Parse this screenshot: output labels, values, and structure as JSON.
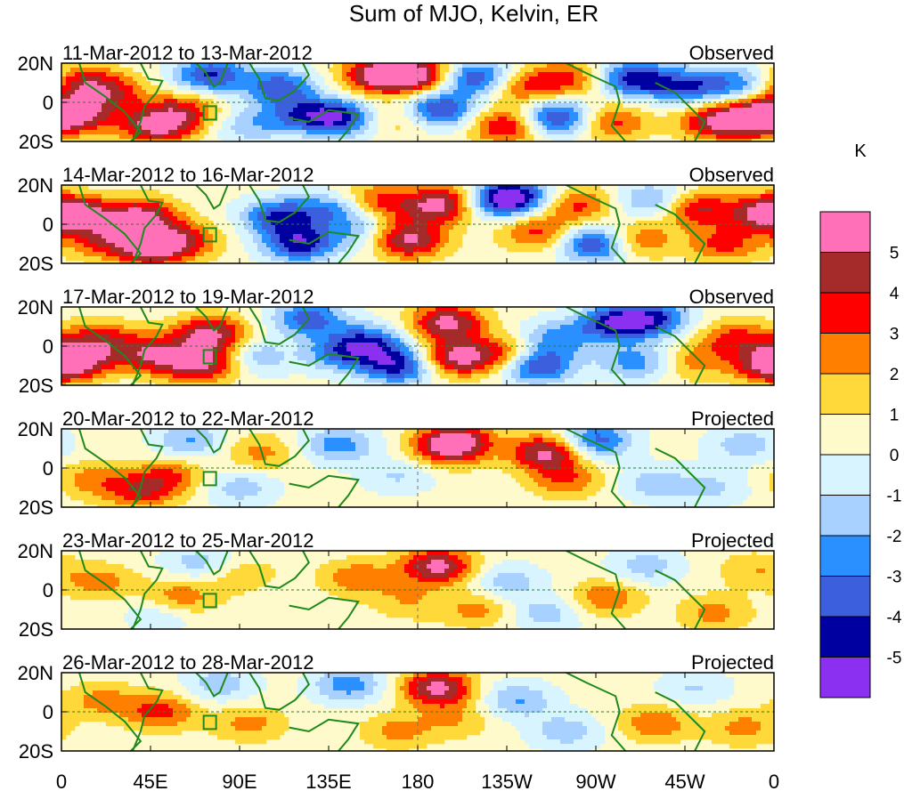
{
  "chart_data": {
    "type": "heatmap",
    "title": "Sum of MJO, Kelvin, ER",
    "x_tick_labels": [
      "0",
      "45E",
      "90E",
      "135E",
      "180",
      "135W",
      "90W",
      "45W",
      "0"
    ],
    "x_ticks_deg_east": [
      0,
      45,
      90,
      135,
      180,
      225,
      270,
      315,
      360
    ],
    "y_tick_labels": [
      "20N",
      "0",
      "20S"
    ],
    "y_ticks_lat": [
      20,
      0,
      -20
    ],
    "xlim": [
      0,
      360
    ],
    "ylim": [
      -20,
      20
    ],
    "colorbar": {
      "unit": "K",
      "tick_labels": [
        "5",
        "4",
        "3",
        "2",
        "1",
        "0",
        "-1",
        "-2",
        "-3",
        "-4",
        "-5"
      ],
      "colors": [
        "#ff70b8",
        "#a52a2a",
        "#ff0000",
        "#ff7f00",
        "#ffd83a",
        "#fffacc",
        "#d8f4ff",
        "#a9d1ff",
        "#2a8fff",
        "#3c5fdd",
        "#0000a0",
        "#8b2ff0"
      ]
    },
    "panels": [
      {
        "date_range": "11-Mar-2012 to 13-Mar-2012",
        "status": "Observed",
        "blobs": [
          [
            8,
            10,
            3.5
          ],
          [
            8,
            -6,
            4.5
          ],
          [
            25,
            5,
            3
          ],
          [
            48,
            -12,
            5
          ],
          [
            75,
            14,
            -4.5
          ],
          [
            62,
            -4,
            3
          ],
          [
            95,
            -12,
            -2
          ],
          [
            110,
            8,
            -4
          ],
          [
            120,
            -6,
            -3
          ],
          [
            140,
            -8,
            -5
          ],
          [
            160,
            14,
            5
          ],
          [
            180,
            14,
            5
          ],
          [
            172,
            -8,
            2
          ],
          [
            190,
            -4,
            -5
          ],
          [
            210,
            12,
            -5
          ],
          [
            225,
            -12,
            4
          ],
          [
            230,
            8,
            3
          ],
          [
            250,
            -8,
            -5
          ],
          [
            255,
            12,
            3
          ],
          [
            278,
            -10,
            3
          ],
          [
            290,
            12,
            -5
          ],
          [
            318,
            8,
            -4
          ],
          [
            330,
            -10,
            4
          ],
          [
            350,
            -8,
            5
          ],
          [
            345,
            10,
            -3
          ]
        ]
      },
      {
        "date_range": "14-Mar-2012 to 16-Mar-2012",
        "status": "Observed",
        "blobs": [
          [
            8,
            5,
            4
          ],
          [
            20,
            -8,
            3
          ],
          [
            40,
            4,
            5
          ],
          [
            45,
            -12,
            5
          ],
          [
            62,
            -8,
            3
          ],
          [
            110,
            4,
            -4.5
          ],
          [
            120,
            -10,
            -5
          ],
          [
            138,
            8,
            -3
          ],
          [
            150,
            -4,
            -2
          ],
          [
            158,
            12,
            3
          ],
          [
            175,
            -8,
            5
          ],
          [
            185,
            8,
            3
          ],
          [
            200,
            12,
            4
          ],
          [
            215,
            12,
            -4
          ],
          [
            230,
            14,
            -5
          ],
          [
            240,
            -4,
            3
          ],
          [
            260,
            10,
            3
          ],
          [
            270,
            -10,
            -5
          ],
          [
            290,
            -8,
            3
          ],
          [
            300,
            12,
            -3
          ],
          [
            320,
            8,
            4
          ],
          [
            335,
            -10,
            3
          ],
          [
            355,
            6,
            4
          ]
        ]
      },
      {
        "date_range": "17-Mar-2012 to 19-Mar-2012",
        "status": "Observed",
        "blobs": [
          [
            8,
            -6,
            4
          ],
          [
            20,
            4,
            3
          ],
          [
            45,
            -4,
            4
          ],
          [
            65,
            -10,
            3
          ],
          [
            75,
            6,
            5
          ],
          [
            80,
            -8,
            3
          ],
          [
            95,
            -6,
            -3
          ],
          [
            125,
            14,
            -4
          ],
          [
            140,
            -4,
            -3
          ],
          [
            155,
            2,
            -4
          ],
          [
            170,
            -10,
            -5
          ],
          [
            195,
            12,
            5
          ],
          [
            200,
            -6,
            5
          ],
          [
            225,
            -4,
            3
          ],
          [
            240,
            -10,
            -5
          ],
          [
            250,
            4,
            -3
          ],
          [
            280,
            12,
            -5
          ],
          [
            300,
            14,
            -4
          ],
          [
            290,
            -8,
            -3
          ],
          [
            320,
            -8,
            2
          ],
          [
            340,
            4,
            3
          ],
          [
            358,
            -10,
            4
          ]
        ]
      },
      {
        "date_range": "20-Mar-2012 to 22-Mar-2012",
        "status": "Projected",
        "blobs": [
          [
            15,
            -6,
            2
          ],
          [
            40,
            -12,
            3
          ],
          [
            55,
            -4,
            2.5
          ],
          [
            65,
            14,
            -2.5
          ],
          [
            90,
            -10,
            -2
          ],
          [
            100,
            8,
            2
          ],
          [
            140,
            12,
            -3
          ],
          [
            170,
            -4,
            -1.5
          ],
          [
            195,
            10,
            3
          ],
          [
            200,
            14,
            4
          ],
          [
            245,
            8,
            5
          ],
          [
            255,
            -6,
            2.5
          ],
          [
            270,
            14,
            -4
          ],
          [
            300,
            -8,
            -2
          ],
          [
            330,
            -10,
            -1.5
          ],
          [
            345,
            12,
            -2
          ]
        ]
      },
      {
        "date_range": "23-Mar-2012 to 25-Mar-2012",
        "status": "Projected",
        "blobs": [
          [
            20,
            4,
            2
          ],
          [
            50,
            -12,
            -1.5
          ],
          [
            60,
            -4,
            2.5
          ],
          [
            70,
            14,
            -2
          ],
          [
            90,
            8,
            1.5
          ],
          [
            150,
            6,
            2.5
          ],
          [
            175,
            -6,
            1.5
          ],
          [
            190,
            12,
            5
          ],
          [
            210,
            -10,
            2
          ],
          [
            225,
            4,
            -2
          ],
          [
            245,
            -12,
            -2
          ],
          [
            275,
            -4,
            2.5
          ],
          [
            295,
            12,
            -2
          ],
          [
            330,
            -12,
            2
          ],
          [
            350,
            10,
            1.5
          ]
        ]
      },
      {
        "date_range": "26-Mar-2012 to 28-Mar-2012",
        "status": "Projected",
        "blobs": [
          [
            20,
            6,
            2
          ],
          [
            50,
            0,
            3
          ],
          [
            80,
            14,
            -2
          ],
          [
            95,
            -6,
            2
          ],
          [
            145,
            14,
            -3
          ],
          [
            170,
            -10,
            2
          ],
          [
            190,
            12,
            5
          ],
          [
            200,
            -4,
            1.5
          ],
          [
            230,
            6,
            -2.5
          ],
          [
            255,
            -10,
            -2
          ],
          [
            300,
            -6,
            2.5
          ],
          [
            320,
            12,
            -1.5
          ],
          [
            345,
            -8,
            2
          ]
        ]
      }
    ]
  }
}
